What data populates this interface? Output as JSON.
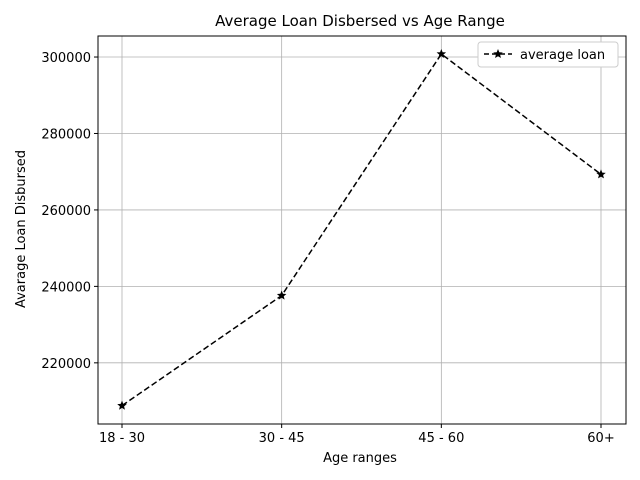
{
  "chart_data": {
    "type": "line",
    "title": "Average Loan Disbersed vs Age Range",
    "xlabel": "Age ranges",
    "ylabel": "Avarage Loan Disbursed",
    "categories": [
      "18 - 30",
      "30 - 45",
      "45 - 60",
      "60+"
    ],
    "series": [
      {
        "name": "average loan",
        "values": [
          208800,
          237600,
          300800,
          269300
        ],
        "color": "#000000",
        "line_style": "dashed",
        "marker": "star"
      }
    ],
    "ylim": [
      204000,
      305500
    ],
    "yticks": [
      220000,
      240000,
      260000,
      280000,
      300000
    ],
    "ytick_labels": [
      "220000",
      "240000",
      "260000",
      "280000",
      "300000"
    ],
    "grid": true,
    "legend_position": "top-right"
  }
}
